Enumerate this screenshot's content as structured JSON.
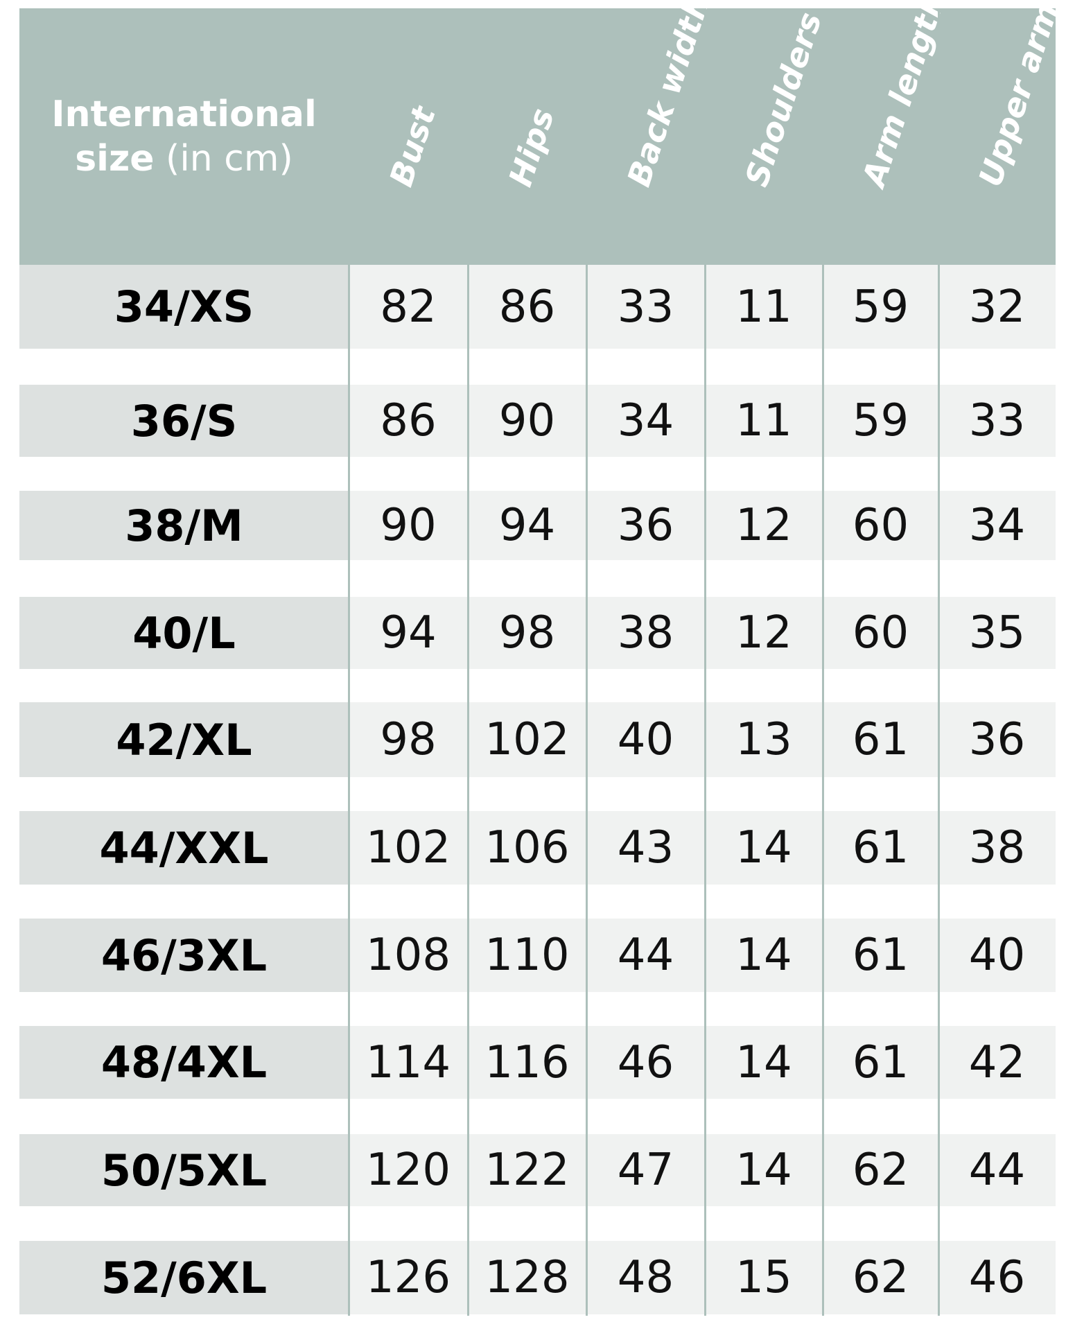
{
  "header": {
    "first_line": "International",
    "second_bold": "size",
    "second_light": "(in cm)",
    "columns": [
      "Bust",
      "Hips",
      "Back width",
      "Shoulders",
      "Arm length",
      "Upper arm"
    ]
  },
  "rows": [
    {
      "size": "34/XS",
      "values": [
        "82",
        "86",
        "33",
        "11",
        "59",
        "32"
      ]
    },
    {
      "size": "36/S",
      "values": [
        "86",
        "90",
        "34",
        "11",
        "59",
        "33"
      ]
    },
    {
      "size": "38/M",
      "values": [
        "90",
        "94",
        "36",
        "12",
        "60",
        "34"
      ]
    },
    {
      "size": "40/L",
      "values": [
        "94",
        "98",
        "38",
        "12",
        "60",
        "35"
      ]
    },
    {
      "size": "42/XL",
      "values": [
        "98",
        "102",
        "40",
        "13",
        "61",
        "36"
      ]
    },
    {
      "size": "44/XXL",
      "values": [
        "102",
        "106",
        "43",
        "14",
        "61",
        "38"
      ]
    },
    {
      "size": "46/3XL",
      "values": [
        "108",
        "110",
        "44",
        "14",
        "61",
        "40"
      ]
    },
    {
      "size": "48/4XL",
      "values": [
        "114",
        "116",
        "46",
        "14",
        "61",
        "42"
      ]
    },
    {
      "size": "50/5XL",
      "values": [
        "120",
        "122",
        "47",
        "14",
        "62",
        "44"
      ]
    },
    {
      "size": "52/6XL",
      "values": [
        "126",
        "128",
        "48",
        "15",
        "62",
        "46"
      ]
    }
  ],
  "colors": {
    "header_bg": "#adc0bb",
    "size_cell_bg": "#dde1e0",
    "value_cell_bg": "#f0f2f1"
  }
}
